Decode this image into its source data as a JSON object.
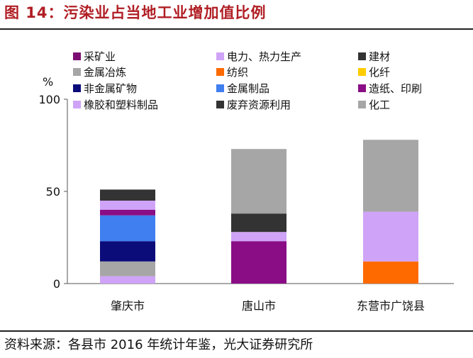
{
  "title": "图 14：污染业占当地工业增加值比例",
  "source": "资料来源：各县市 2016 年统计年鉴，光大证券研究所",
  "chart_data": {
    "type": "bar",
    "stacked": true,
    "ylabel": "%",
    "ylim": [
      0,
      100
    ],
    "yticks": [
      0,
      50,
      100
    ],
    "categories": [
      "肇庆市",
      "唐山市",
      "东营市广饶县"
    ],
    "series": [
      {
        "name": "采矿业",
        "color": "#7a0e73",
        "values": [
          0,
          0,
          0
        ]
      },
      {
        "name": "金属冶炼",
        "color": "#a6a6a6",
        "values": [
          8,
          0,
          0
        ]
      },
      {
        "name": "非金属矿物",
        "color": "#0b0b7a",
        "values": [
          11,
          0,
          0
        ]
      },
      {
        "name": "橡胶和塑料制品",
        "color": "#cfa3f7",
        "values": [
          4,
          5,
          27
        ]
      },
      {
        "name": "电力、热力生产",
        "color": "#cfa3f7",
        "values": [
          5,
          0,
          0
        ]
      },
      {
        "name": "纺织",
        "color": "#ff6a00",
        "values": [
          0,
          0,
          12
        ]
      },
      {
        "name": "金属制品",
        "color": "#3f7ff0",
        "values": [
          14,
          0,
          0
        ]
      },
      {
        "name": "废弃资源利用",
        "color": "#333333",
        "values": [
          0,
          0,
          0
        ]
      },
      {
        "name": "建材",
        "color": "#333333",
        "values": [
          6,
          10,
          0
        ]
      },
      {
        "name": "化纤",
        "color": "#ffcc00",
        "values": [
          0,
          0,
          0
        ]
      },
      {
        "name": "造纸、印刷",
        "color": "#8a0d85",
        "values": [
          3,
          23,
          0
        ]
      },
      {
        "name": "化工",
        "color": "#a6a6a6",
        "values": [
          0,
          35,
          39
        ]
      }
    ],
    "legend": [
      {
        "name": "采矿业",
        "color": "#7a0e73"
      },
      {
        "name": "电力、热力生产",
        "color": "#cfa3f7"
      },
      {
        "name": "建材",
        "color": "#333333"
      },
      {
        "name": "金属冶炼",
        "color": "#a6a6a6"
      },
      {
        "name": "纺织",
        "color": "#ff6a00"
      },
      {
        "name": "化纤",
        "color": "#ffcc00"
      },
      {
        "name": "非金属矿物",
        "color": "#0b0b7a"
      },
      {
        "name": "金属制品",
        "color": "#3f7ff0"
      },
      {
        "name": "造纸、印刷",
        "color": "#8a0d85"
      },
      {
        "name": "橡胶和塑料制品",
        "color": "#cfa3f7"
      },
      {
        "name": "废弃资源利用",
        "color": "#333333"
      },
      {
        "name": "化工",
        "color": "#a6a6a6"
      }
    ],
    "stack_order": [
      [
        "橡胶和塑料制品",
        "金属冶炼",
        "非金属矿物",
        "金属制品",
        "造纸、印刷",
        "电力、热力生产",
        "建材"
      ],
      [
        "造纸、印刷",
        "橡胶和塑料制品",
        "建材",
        "化工"
      ],
      [
        "纺织",
        "橡胶和塑料制品",
        "化工"
      ]
    ],
    "legend_position": "top",
    "grid": false
  }
}
